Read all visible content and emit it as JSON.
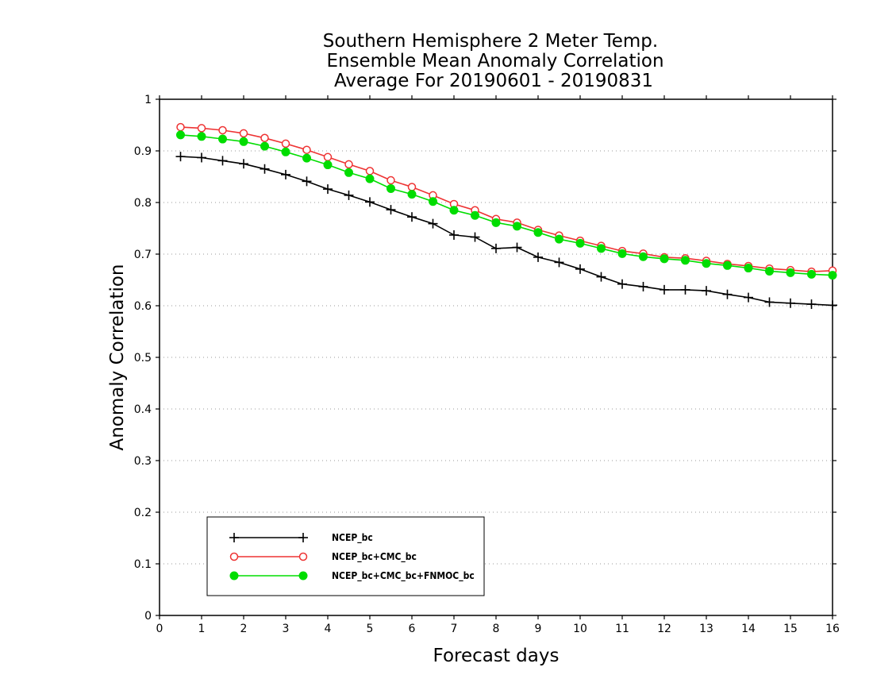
{
  "chart_data": {
    "type": "line",
    "title_lines": [
      "Southern Hemisphere 2 Meter Temp.",
      "Ensemble Mean Anomaly Correlation",
      "Average For 20190601 - 20190831"
    ],
    "xlabel": "Forecast days",
    "ylabel": "Anomaly Correlation",
    "xlim": [
      0,
      16
    ],
    "ylim": [
      0,
      1
    ],
    "x_ticks": [
      "0",
      "1",
      "2",
      "3",
      "4",
      "5",
      "6",
      "7",
      "8",
      "9",
      "10",
      "11",
      "12",
      "13",
      "14",
      "15",
      "16"
    ],
    "y_ticks": [
      "0",
      "0.1",
      "0.2",
      "0.3",
      "0.4",
      "0.5",
      "0.6",
      "0.7",
      "0.8",
      "0.9",
      "1"
    ],
    "grid": "dotted-horizontal",
    "legend_position": "bottom-left",
    "x": [
      0.5,
      1,
      1.5,
      2,
      2.5,
      3,
      3.5,
      4,
      4.5,
      5,
      5.5,
      6,
      6.5,
      7,
      7.5,
      8,
      8.5,
      9,
      9.5,
      10,
      10.5,
      11,
      11.5,
      12,
      12.5,
      13,
      13.5,
      14,
      14.5,
      15,
      15.5,
      16
    ],
    "series": [
      {
        "name": "NCEP_bc",
        "color": "#000000",
        "marker": "plus",
        "values": [
          0.889,
          0.887,
          0.881,
          0.875,
          0.865,
          0.854,
          0.841,
          0.826,
          0.814,
          0.801,
          0.786,
          0.772,
          0.759,
          0.737,
          0.733,
          0.711,
          0.713,
          0.694,
          0.684,
          0.671,
          0.656,
          0.642,
          0.637,
          0.631,
          0.631,
          0.629,
          0.622,
          0.616,
          0.607,
          0.605,
          0.603,
          0.601
        ]
      },
      {
        "name": "NCEP_bc+CMC_bc",
        "color": "#ee3333",
        "marker": "open-circle",
        "values": [
          0.946,
          0.944,
          0.94,
          0.934,
          0.925,
          0.914,
          0.902,
          0.888,
          0.874,
          0.861,
          0.843,
          0.83,
          0.814,
          0.797,
          0.785,
          0.768,
          0.761,
          0.747,
          0.736,
          0.726,
          0.716,
          0.706,
          0.701,
          0.694,
          0.692,
          0.687,
          0.681,
          0.677,
          0.672,
          0.669,
          0.666,
          0.668
        ]
      },
      {
        "name": "NCEP_bc+CMC_bc+FNMOC_bc",
        "color": "#00dd00",
        "marker": "filled-circle",
        "values": [
          0.931,
          0.928,
          0.923,
          0.918,
          0.909,
          0.898,
          0.886,
          0.873,
          0.858,
          0.846,
          0.827,
          0.816,
          0.802,
          0.785,
          0.775,
          0.761,
          0.754,
          0.742,
          0.729,
          0.721,
          0.711,
          0.701,
          0.695,
          0.691,
          0.688,
          0.682,
          0.678,
          0.673,
          0.667,
          0.664,
          0.661,
          0.659
        ]
      }
    ]
  }
}
